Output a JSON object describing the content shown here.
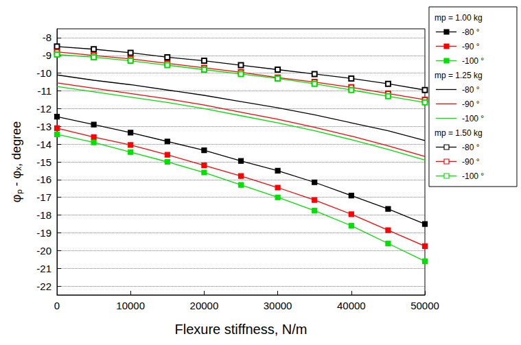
{
  "chart_data": {
    "type": "line",
    "xlabel": "Flexure stiffness, N/m",
    "ylabel": "φₚ - φₓ, degree",
    "x": [
      0,
      5000,
      10000,
      15000,
      20000,
      25000,
      30000,
      35000,
      40000,
      45000,
      50000
    ],
    "xlim": [
      0,
      50000
    ],
    "xticks": [
      0,
      10000,
      20000,
      30000,
      40000,
      50000
    ],
    "ylim": [
      -22.5,
      -7.5
    ],
    "yticks": [
      -22,
      -21,
      -20,
      -19,
      -18,
      -17,
      -16,
      -15,
      -14,
      -13,
      -12,
      -11,
      -10,
      -9,
      -8
    ],
    "grid": true,
    "legend": "right",
    "series": [
      {
        "name": "-80 °",
        "group": "mp = 1.00 kg",
        "color": "#000000",
        "marker": "square",
        "values": [
          -12.45,
          -12.9,
          -13.35,
          -13.85,
          -14.35,
          -14.95,
          -15.5,
          -16.15,
          -16.9,
          -17.65,
          -18.5
        ]
      },
      {
        "name": "-90 °",
        "group": "mp = 1.00 kg",
        "color": "#ff0000",
        "marker": "square",
        "values": [
          -13.1,
          -13.6,
          -14.05,
          -14.6,
          -15.2,
          -15.8,
          -16.45,
          -17.15,
          -17.95,
          -18.85,
          -19.75
        ]
      },
      {
        "name": "-100 °",
        "group": "mp = 1.00 kg",
        "color": "#00e000",
        "marker": "square",
        "values": [
          -13.45,
          -13.9,
          -14.45,
          -15.0,
          -15.6,
          -16.3,
          -17.0,
          -17.75,
          -18.6,
          -19.6,
          -20.6
        ]
      },
      {
        "name": "-80 °",
        "group": "mp = 1.25 kg",
        "color": "#000000",
        "marker": "none",
        "values": [
          -10.1,
          -10.4,
          -10.65,
          -10.95,
          -11.25,
          -11.6,
          -11.95,
          -12.35,
          -12.8,
          -13.25,
          -13.8
        ]
      },
      {
        "name": "-90 °",
        "group": "mp = 1.25 kg",
        "color": "#ff0000",
        "marker": "none",
        "values": [
          -10.55,
          -10.85,
          -11.15,
          -11.45,
          -11.8,
          -12.2,
          -12.6,
          -13.05,
          -13.55,
          -14.1,
          -14.7
        ]
      },
      {
        "name": "-100 °",
        "group": "mp = 1.25 kg",
        "color": "#00e000",
        "marker": "none",
        "values": [
          -10.75,
          -11.05,
          -11.35,
          -11.65,
          -12.0,
          -12.4,
          -12.8,
          -13.25,
          -13.75,
          -14.3,
          -14.9
        ]
      },
      {
        "name": "-80 °",
        "group": "mp = 1.50 kg",
        "color": "#000000",
        "marker": "open_square",
        "values": [
          -8.5,
          -8.65,
          -8.85,
          -9.1,
          -9.3,
          -9.55,
          -9.8,
          -10.05,
          -10.3,
          -10.6,
          -10.95
        ]
      },
      {
        "name": "-90 °",
        "group": "mp = 1.50 kg",
        "color": "#ff0000",
        "marker": "open_square",
        "values": [
          -8.8,
          -9.0,
          -9.2,
          -9.45,
          -9.7,
          -9.95,
          -10.25,
          -10.5,
          -10.8,
          -11.15,
          -11.5
        ]
      },
      {
        "name": "-100 °",
        "group": "mp = 1.50 kg",
        "color": "#00e000",
        "marker": "open_square",
        "values": [
          -8.95,
          -9.1,
          -9.3,
          -9.55,
          -9.8,
          -10.05,
          -10.3,
          -10.6,
          -10.95,
          -11.3,
          -11.65
        ]
      }
    ]
  }
}
